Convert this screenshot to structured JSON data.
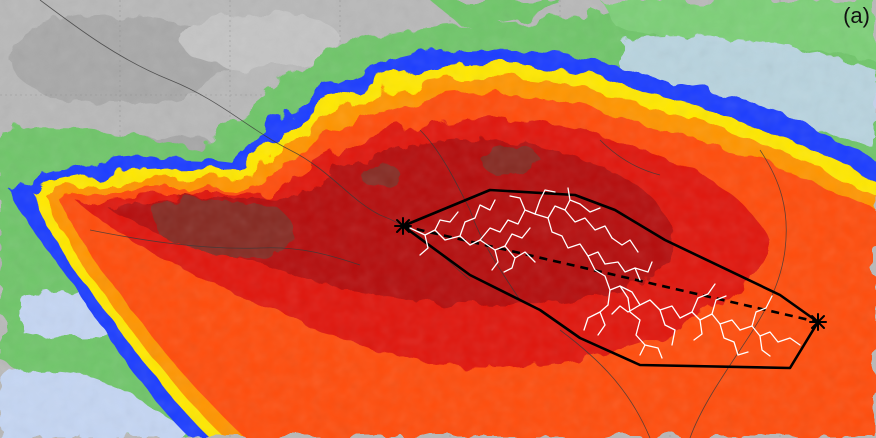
{
  "panel_label": "(a)",
  "palette": {
    "cloud_free": "#b9b9b9",
    "cloud_free_dark": "#9d9d9d",
    "green": "#6fc66a",
    "light_blue": "#c5d6f3",
    "blue": "#1f3dff",
    "yellow": "#ffe800",
    "orange": "#ff9500",
    "red_orange": "#ff4d0a",
    "red": "#e0170f",
    "dark_red": "#b50f0c",
    "darkest_red": "#862a22",
    "flash_channels": "#ffffff",
    "outline": "#000000"
  },
  "icons": {
    "start_marker": "asterisk-marker",
    "end_marker": "asterisk-marker"
  }
}
